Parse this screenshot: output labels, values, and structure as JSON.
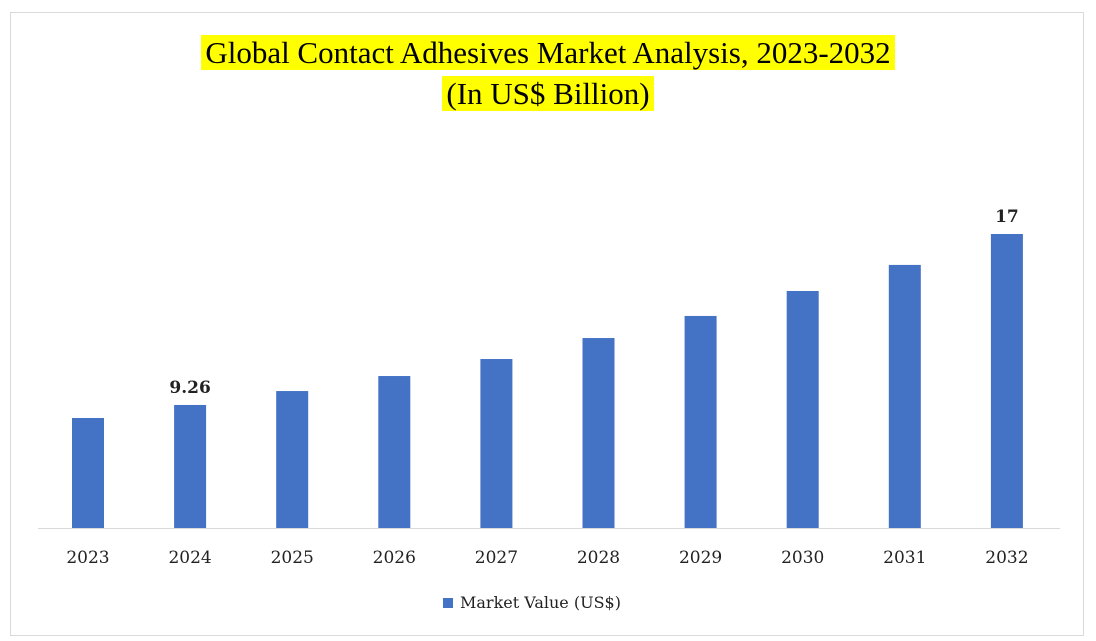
{
  "chart_data": {
    "type": "bar",
    "title_line1": "Global Contact Adhesives Market Analysis, 2023-2032",
    "title_line2": "(In US$ Billion)",
    "categories": [
      "2023",
      "2024",
      "2025",
      "2026",
      "2027",
      "2028",
      "2029",
      "2030",
      "2031",
      "2032"
    ],
    "series": [
      {
        "name": "Market Value (US$)",
        "values": [
          8.67,
          9.26,
          9.89,
          10.57,
          11.34,
          12.29,
          13.29,
          14.42,
          15.6,
          17
        ]
      }
    ],
    "data_labels": [
      {
        "category": "2024",
        "text": "9.26"
      },
      {
        "category": "2032",
        "text": "17"
      }
    ],
    "xlabel": "",
    "ylabel": "",
    "ylim": [
      3.69,
      17
    ],
    "grid": false,
    "legend_position": "bottom",
    "bar_color": "#4472c4"
  }
}
